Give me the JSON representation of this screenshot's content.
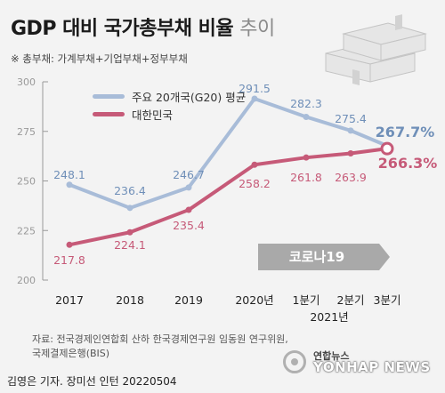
{
  "header": {
    "title_main": "GDP 대비 국가총부채 비율",
    "title_suffix": "추이",
    "note": "※ 총부채: 가계부채+기업부채+정부부채"
  },
  "colors": {
    "g20": "#a8bcd8",
    "korea": "#c65a78",
    "g20_label": "#6f8fb8",
    "korea_label": "#c65a78",
    "arrow": "#a9a9a9"
  },
  "chart_data": {
    "type": "line",
    "categories": [
      "2017",
      "2018",
      "2019",
      "2020년",
      "1분기",
      "2분기",
      "3분기"
    ],
    "year_sublabel": "2021년",
    "ylim": [
      200,
      300
    ],
    "yticks": [
      200,
      225,
      250,
      275,
      300
    ],
    "series": [
      {
        "name": "주요 20개국(G20) 평균",
        "values": [
          248.1,
          236.4,
          246.7,
          291.5,
          282.3,
          275.4,
          267.7
        ]
      },
      {
        "name": "대한민국",
        "values": [
          217.8,
          224.1,
          235.4,
          258.2,
          261.8,
          263.9,
          266.3
        ]
      }
    ],
    "value_labels": [
      [
        "248.1",
        "236.4",
        "246.7",
        "291.5",
        "282.3",
        "275.4",
        "267.7%"
      ],
      [
        "217.8",
        "224.1",
        "235.4",
        "258.2",
        "261.8",
        "263.9",
        "266.3%"
      ]
    ],
    "annotation": "코로나19",
    "legend_position": "top-left",
    "grid": false
  },
  "footer": {
    "source_line1": "자료: 전국경제인연합회 산하 한국경제연구원 임동원 연구위원,",
    "source_line2": "국제결제은행(BIS)",
    "credit": "김영은 기자. 장미선 인턴  20220504",
    "logo_kr": "연합뉴스",
    "logo_en": "YONHAP NEWS"
  }
}
